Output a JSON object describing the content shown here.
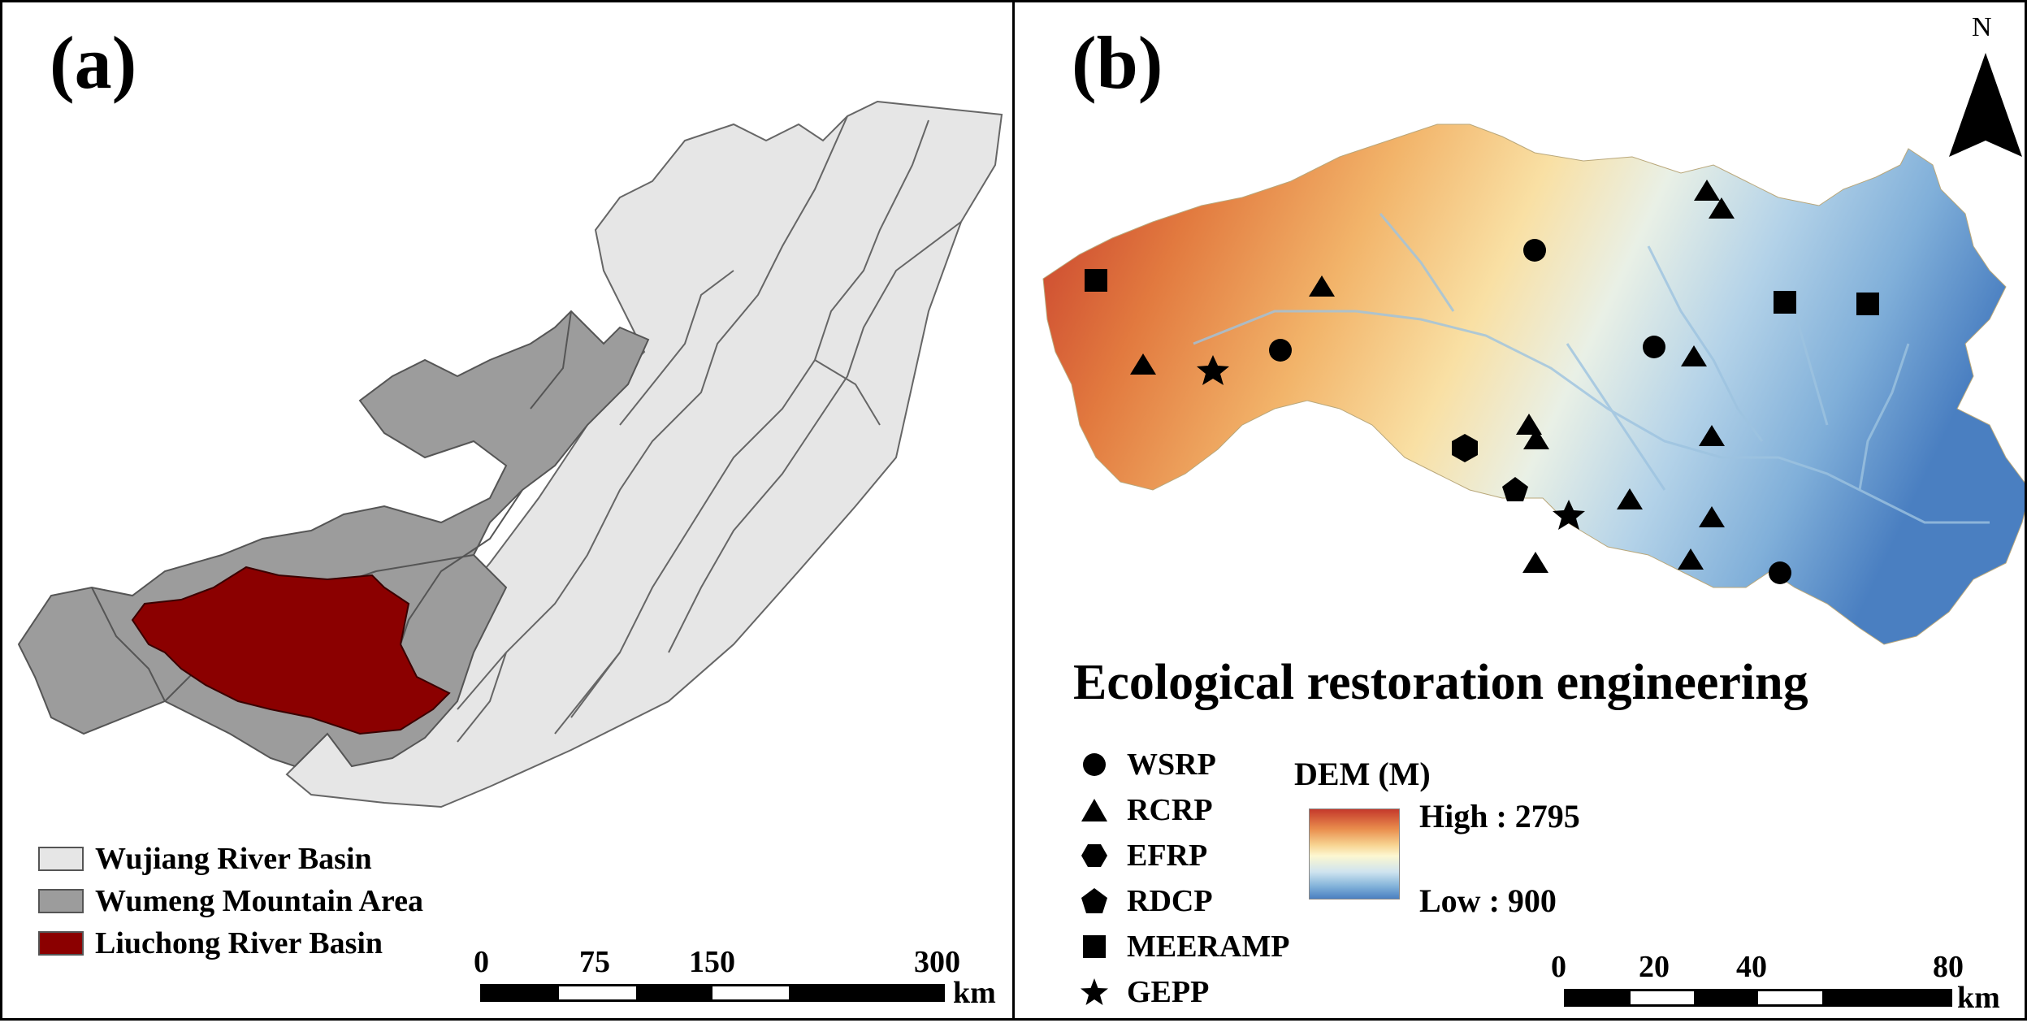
{
  "panel_a": {
    "label": "(a)",
    "legend": [
      {
        "label": "Wujiang River Basin",
        "color": "#e6e6e6"
      },
      {
        "label": "Wumeng Mountain Area",
        "color": "#9c9c9c"
      },
      {
        "label": "Liuchong River Basin",
        "color": "#8b0000"
      }
    ],
    "scale_ticks": [
      "0",
      "75",
      "150",
      "300"
    ],
    "scale_unit": "km"
  },
  "panel_b": {
    "label": "(b)",
    "north_label": "N",
    "title": "Ecological restoration engineering",
    "symbols": [
      {
        "label": "WSRP",
        "shape": "circle"
      },
      {
        "label": "RCRP",
        "shape": "triangle"
      },
      {
        "label": "EFRP",
        "shape": "hexagon"
      },
      {
        "label": "RDCP",
        "shape": "pentagon"
      },
      {
        "label": "MEERAMP",
        "shape": "square"
      },
      {
        "label": "GEPP",
        "shape": "star"
      }
    ],
    "dem": {
      "title": "DEM (M)",
      "high_label": "High : 2795",
      "low_label": "Low : 900",
      "high_color": "#c5392b",
      "low_color": "#4a7fc1"
    },
    "scale_ticks": [
      "0",
      "20",
      "40",
      "80"
    ],
    "scale_unit": "km"
  }
}
